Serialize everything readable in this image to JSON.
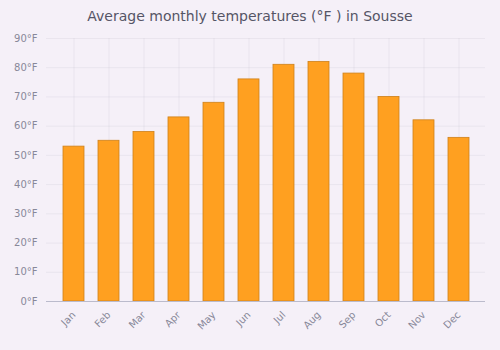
{
  "chart_data": {
    "type": "bar",
    "title": "Average monthly temperatures (°F ) in Sousse",
    "categories": [
      "Jan",
      "Feb",
      "Mar",
      "Apr",
      "May",
      "Jun",
      "Jul",
      "Aug",
      "Sep",
      "Oct",
      "Nov",
      "Dec"
    ],
    "values": [
      53,
      55,
      58,
      63,
      68,
      76,
      81,
      82,
      78,
      70,
      62,
      56
    ],
    "color": "#FFA020",
    "ylim": [
      0,
      90
    ],
    "yticks": [
      {
        "value": 0,
        "label": "0°F"
      },
      {
        "value": 10,
        "label": "10°F"
      },
      {
        "value": 20,
        "label": "20°F"
      },
      {
        "value": 30,
        "label": "30°F"
      },
      {
        "value": 40,
        "label": "40°F"
      },
      {
        "value": 50,
        "label": "50°F"
      },
      {
        "value": 60,
        "label": "60°F"
      },
      {
        "value": 70,
        "label": "70°F"
      },
      {
        "value": 80,
        "label": "80°F"
      },
      {
        "value": 90,
        "label": "90°F"
      }
    ],
    "grid": true
  }
}
